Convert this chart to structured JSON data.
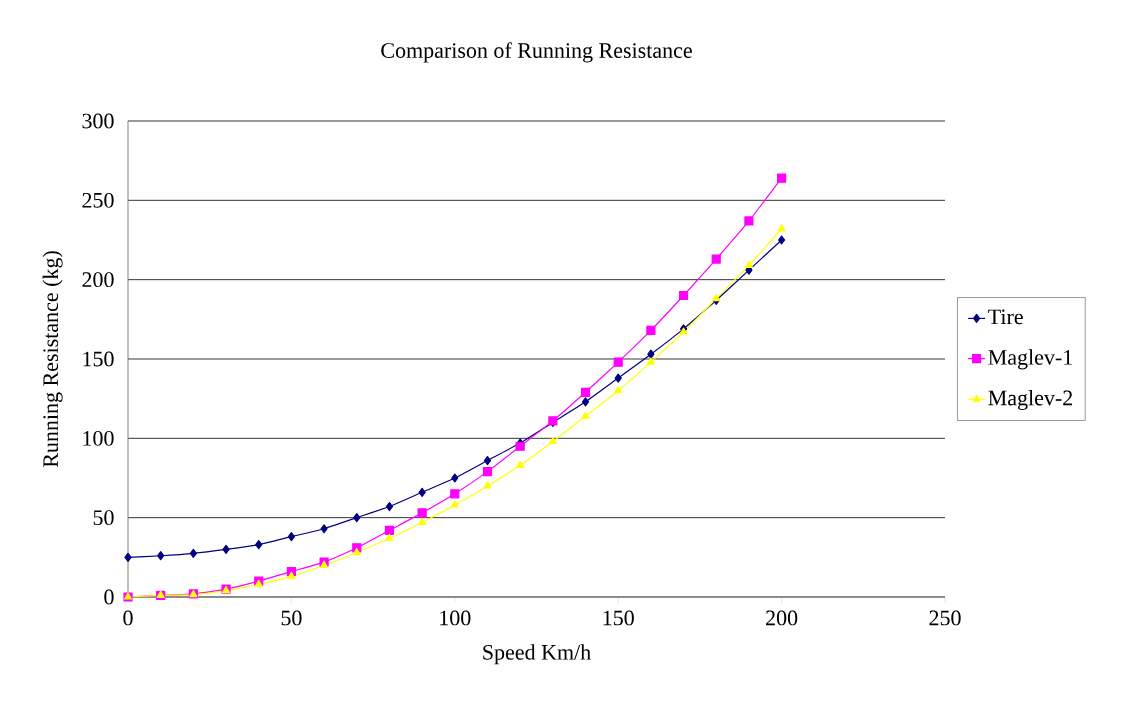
{
  "chart_data": {
    "type": "line",
    "title": "Comparison of Running Resistance",
    "xlabel": "Speed Km/h",
    "ylabel": "Running Resistance (kg)",
    "x": [
      0,
      10,
      20,
      30,
      40,
      50,
      60,
      70,
      80,
      90,
      100,
      110,
      120,
      130,
      140,
      150,
      160,
      170,
      180,
      190,
      200
    ],
    "series": [
      {
        "name": "Tire",
        "color": "#000080",
        "marker": "diamond",
        "values": [
          25,
          26,
          27.5,
          30,
          33,
          38,
          43,
          50,
          57,
          66,
          75,
          86,
          97,
          110,
          123,
          138,
          153,
          169,
          187,
          206,
          225
        ]
      },
      {
        "name": "Maglev-1",
        "color": "#ff00ff",
        "marker": "square",
        "values": [
          0,
          1,
          2,
          5,
          10,
          16,
          22,
          31,
          42,
          53,
          65,
          79,
          95,
          111,
          129,
          148,
          168,
          190,
          213,
          237,
          264
        ]
      },
      {
        "name": "Maglev-2",
        "color": "#ffff00",
        "marker": "triangle",
        "values": [
          0,
          1,
          1.5,
          4,
          8,
          13,
          20,
          28,
          37,
          47,
          58,
          70,
          83,
          98,
          114,
          130,
          148,
          167,
          188,
          209,
          232
        ]
      }
    ],
    "xlim": [
      0,
      250
    ],
    "xticks": [
      0,
      50,
      100,
      150,
      200,
      250
    ],
    "ylim": [
      0,
      300
    ],
    "yticks": [
      0,
      50,
      100,
      150,
      200,
      250,
      300
    ],
    "grid": "y",
    "legend": "right",
    "line_style": "solid"
  }
}
